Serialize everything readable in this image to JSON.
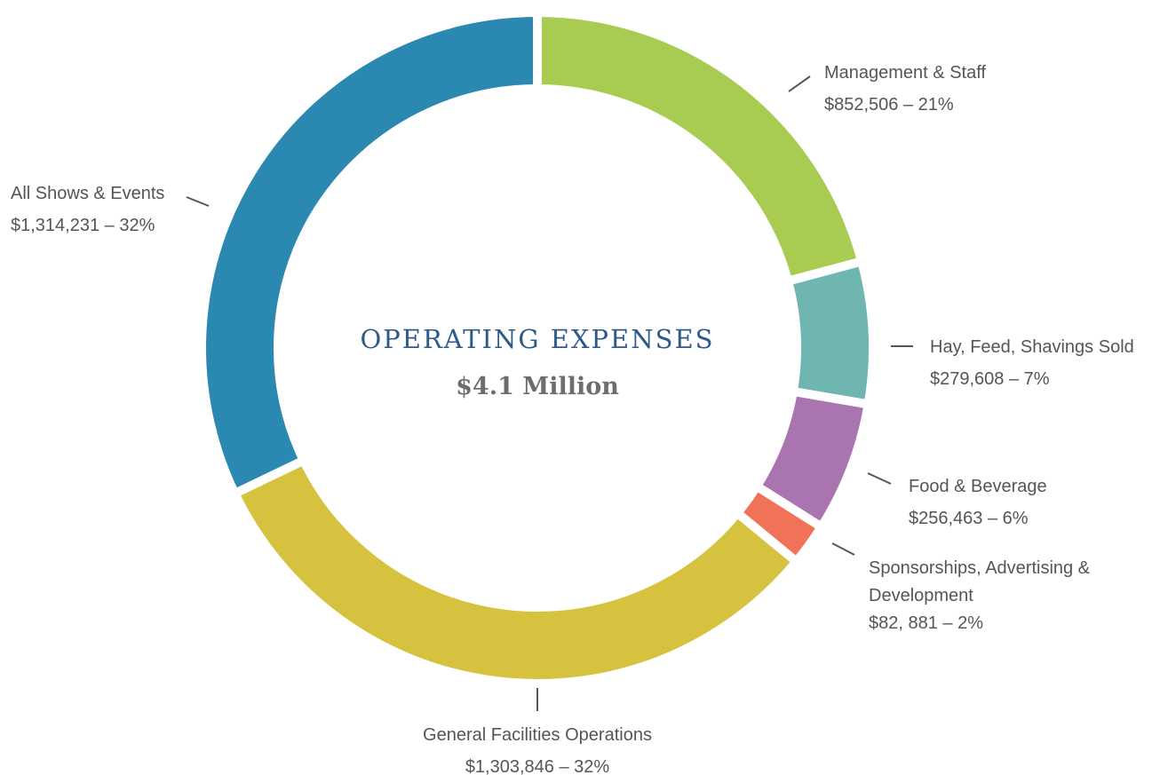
{
  "chart_data": {
    "type": "pie",
    "title": "OPERATING EXPENSES",
    "subtitle": "$4.1 Million",
    "categories": [
      "Management & Staff",
      "Hay, Feed, Shavings Sold",
      "Food & Beverage",
      "Sponsorships, Advertising & Development",
      "General Facilities Operations",
      "All Shows & Events"
    ],
    "values": [
      852506,
      279608,
      256463,
      82881,
      1303846,
      1314231
    ],
    "value_labels": [
      "$852,506 – 21%",
      "$279,608 – 7%",
      "$256,463 – 6%",
      "$82, 881 – 2%",
      "$1,303,846 – 32%",
      "$1,314,231 – 32%"
    ],
    "colors": [
      "#a8cc52",
      "#6fb5b0",
      "#a974b0",
      "#f07259",
      "#d6c23e",
      "#2b88b0"
    ]
  }
}
